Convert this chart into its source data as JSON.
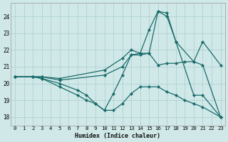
{
  "xlabel": "Humidex (Indice chaleur)",
  "background_color": "#d0e8e8",
  "grid_color": "#aacece",
  "line_color": "#1a6b6b",
  "xlim": [
    -0.5,
    23.5
  ],
  "ylim": [
    17.5,
    24.8
  ],
  "yticks": [
    18,
    19,
    20,
    21,
    22,
    23,
    24
  ],
  "xticks": [
    0,
    1,
    2,
    3,
    4,
    5,
    6,
    7,
    8,
    9,
    10,
    11,
    12,
    13,
    14,
    15,
    16,
    17,
    18,
    19,
    20,
    21,
    22,
    23
  ],
  "line1_x": [
    0,
    2,
    3,
    5,
    10,
    12,
    13,
    14,
    15,
    16,
    17,
    18,
    20,
    21,
    23
  ],
  "line1_y": [
    20.4,
    20.4,
    20.4,
    20.3,
    20.8,
    21.5,
    22.0,
    21.8,
    23.2,
    24.3,
    24.2,
    22.5,
    21.3,
    22.5,
    21.1
  ],
  "line2_x": [
    0,
    2,
    3,
    5,
    10,
    12,
    13,
    14,
    15,
    16,
    17,
    18,
    20,
    21,
    23
  ],
  "line2_y": [
    20.4,
    20.4,
    20.4,
    20.2,
    20.5,
    21.0,
    21.7,
    21.7,
    21.8,
    24.3,
    24.0,
    22.5,
    19.3,
    19.3,
    18.0
  ],
  "line3_x": [
    0,
    2,
    3,
    5,
    7,
    8,
    9,
    10,
    11,
    12,
    13,
    14,
    15,
    16,
    17,
    18,
    19,
    20,
    21,
    23
  ],
  "line3_y": [
    20.4,
    20.4,
    20.3,
    20.0,
    19.6,
    19.3,
    18.8,
    18.4,
    19.4,
    20.5,
    21.7,
    21.8,
    21.8,
    21.1,
    21.2,
    21.2,
    21.3,
    21.3,
    21.1,
    18.0
  ],
  "line4_x": [
    0,
    2,
    3,
    5,
    7,
    8,
    9,
    10,
    11,
    12,
    13,
    14,
    15,
    16,
    17,
    18,
    19,
    20,
    21,
    23
  ],
  "line4_y": [
    20.4,
    20.4,
    20.3,
    19.8,
    19.3,
    19.0,
    18.8,
    18.4,
    18.4,
    18.8,
    19.4,
    19.8,
    19.8,
    19.8,
    19.5,
    19.3,
    19.0,
    18.8,
    18.6,
    18.0
  ]
}
